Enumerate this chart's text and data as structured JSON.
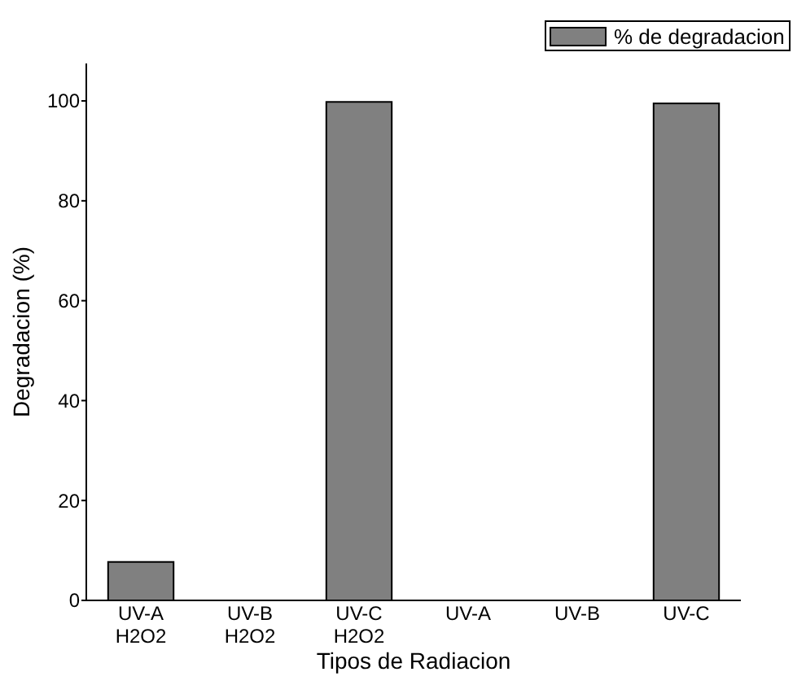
{
  "chart_data": {
    "type": "bar",
    "xlabel": "Tipos de Radiacion",
    "ylabel": "Degradacion (%)",
    "categories": [
      "UV-A\nH2O2",
      "UV-B\nH2O2",
      "UV-C\nH2O2",
      "UV-A",
      "UV-B",
      "UV-C"
    ],
    "series": [
      {
        "name": "% de degradacion",
        "color": "#808080",
        "values": [
          7.7,
          0,
          99.8,
          0,
          0,
          99.5
        ]
      }
    ],
    "ylim": [
      0,
      107.5
    ],
    "yticks": [
      0,
      20,
      40,
      60,
      80,
      100
    ],
    "grid": false,
    "legend": "top right"
  }
}
